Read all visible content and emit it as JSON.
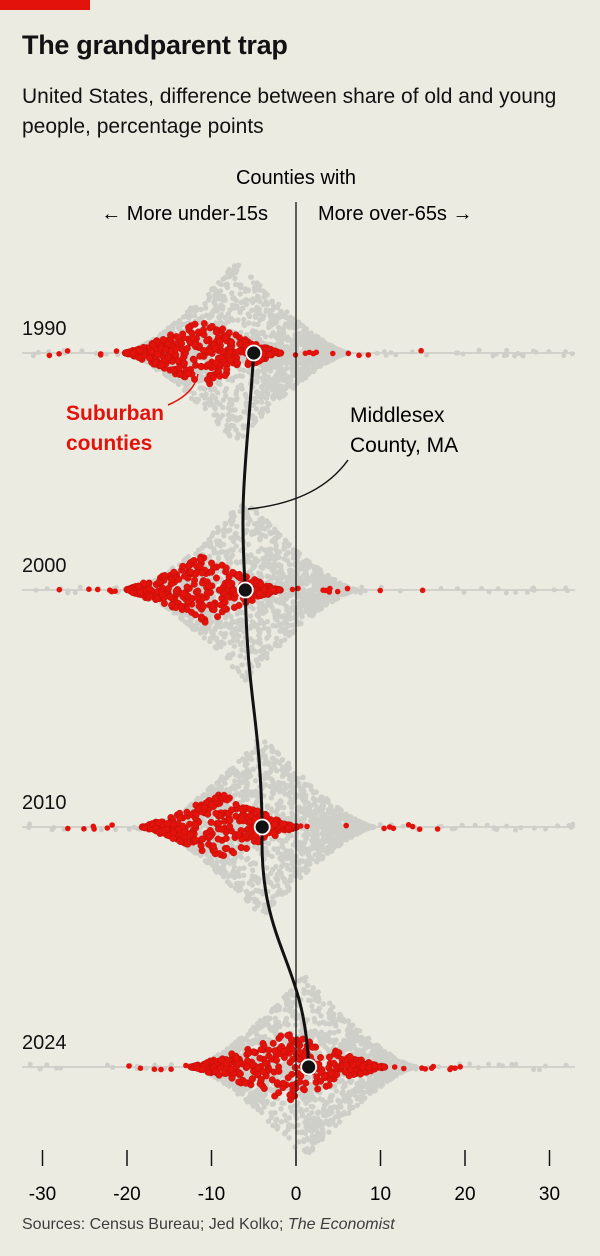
{
  "title": "The grandparent trap",
  "subtitle": "United States, difference between share of old and young people, percentage points",
  "source_prefix": "Sources: Census Bureau; Jed Kolko; ",
  "source_italic": "The Economist",
  "colors": {
    "accent": "#e3120b",
    "all_counties": "#cfcfc9",
    "suburban": "#e3120b",
    "highlight": "#121212",
    "background": "#ecebe2"
  },
  "chart_data": {
    "type": "beeswarm",
    "xlim": [
      -33,
      33
    ],
    "x_ticks": [
      -30,
      -20,
      -10,
      0,
      10,
      20,
      30
    ],
    "tick_labels": [
      "-30",
      "-20",
      "-10",
      "0",
      "10",
      "20",
      "30"
    ],
    "header_label": "Counties with",
    "left_label": "← More under-15s",
    "right_label": "More over-65s →",
    "series_labels": {
      "suburban": "Suburban counties",
      "suburban_line1": "Suburban",
      "suburban_line2": "counties",
      "highlight_line1": "Middlesex",
      "highlight_line2": "County, MA"
    },
    "years": [
      {
        "label": "1990",
        "all_peak": -7,
        "all_spread": 6,
        "suburban_center": -11,
        "suburban_spread": 4,
        "highlight": -5
      },
      {
        "label": "2000",
        "all_peak": -6,
        "all_spread": 6,
        "suburban_center": -11,
        "suburban_spread": 4,
        "highlight": -6
      },
      {
        "label": "2010",
        "all_peak": -4,
        "all_spread": 6,
        "suburban_center": -9,
        "suburban_spread": 4,
        "highlight": -4
      },
      {
        "label": "2024",
        "all_peak": 1,
        "all_spread": 6,
        "suburban_center": -1,
        "suburban_spread": 5,
        "highlight": 1.5
      }
    ]
  }
}
